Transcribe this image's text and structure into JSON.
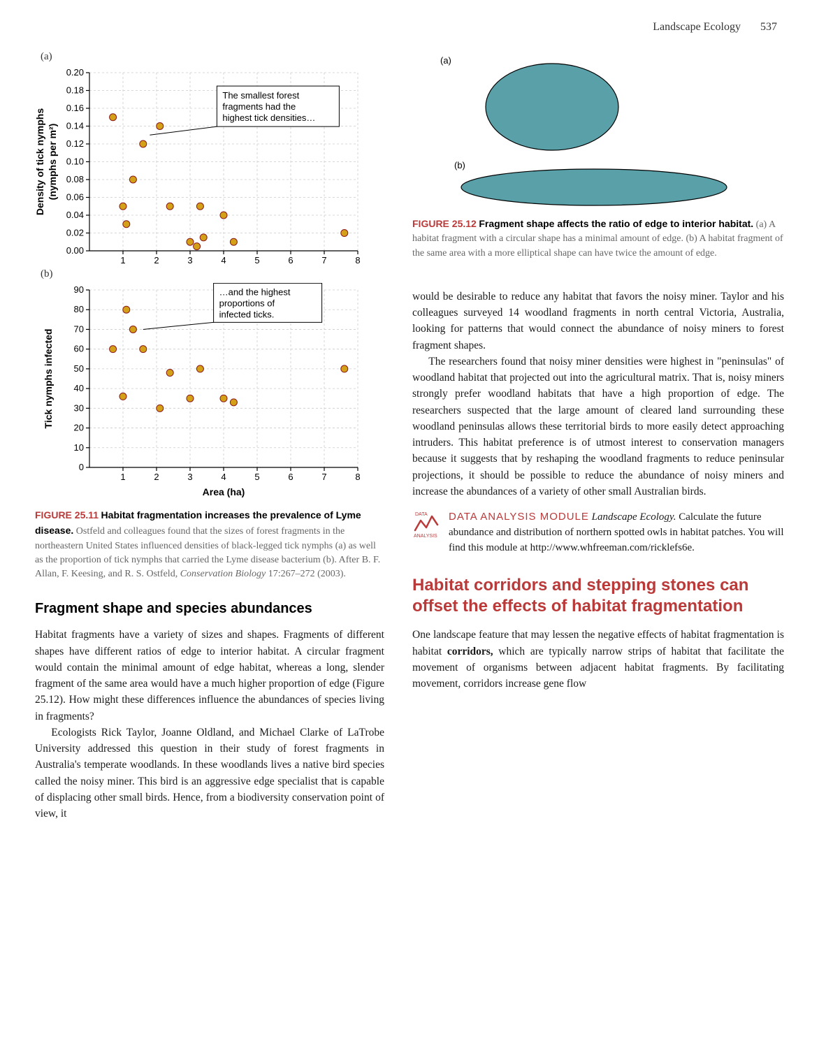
{
  "header": {
    "running": "Landscape Ecology",
    "page": "537"
  },
  "fig11": {
    "panelA": {
      "label": "(a)",
      "yLabel": "Density of tick nymphs\n(nymphs per m²)",
      "xlim": [
        0,
        8
      ],
      "ylim": [
        0.0,
        0.2
      ],
      "xticks": [
        1,
        2,
        3,
        4,
        5,
        6,
        7,
        8
      ],
      "yticks": [
        0.0,
        0.02,
        0.04,
        0.06,
        0.08,
        0.1,
        0.12,
        0.14,
        0.16,
        0.18,
        0.2
      ],
      "ytick_labels": [
        "0.00",
        "0.02",
        "0.04",
        "0.06",
        "0.08",
        "0.10",
        "0.12",
        "0.14",
        "0.16",
        "0.18",
        "0.20"
      ],
      "point_color": "#d4a017",
      "point_stroke": "#8a1a1a",
      "point_radius": 5,
      "grid_color": "#cccccc",
      "background": "#ffffff",
      "annotation": "The smallest forest\nfragments had the\nhighest tick densities…",
      "points": [
        [
          0.7,
          0.15
        ],
        [
          1.0,
          0.05
        ],
        [
          1.1,
          0.03
        ],
        [
          1.3,
          0.08
        ],
        [
          1.6,
          0.12
        ],
        [
          2.1,
          0.14
        ],
        [
          2.4,
          0.05
        ],
        [
          3.0,
          0.01
        ],
        [
          3.2,
          0.005
        ],
        [
          3.3,
          0.05
        ],
        [
          3.4,
          0.015
        ],
        [
          4.0,
          0.04
        ],
        [
          4.3,
          0.01
        ],
        [
          7.6,
          0.02
        ]
      ]
    },
    "panelB": {
      "label": "(b)",
      "yLabel": "Tick nymphs infected",
      "xLabel": "Area (ha)",
      "xlim": [
        0,
        8
      ],
      "ylim": [
        0,
        90
      ],
      "xticks": [
        1,
        2,
        3,
        4,
        5,
        6,
        7,
        8
      ],
      "yticks": [
        0,
        10,
        20,
        30,
        40,
        50,
        60,
        70,
        80,
        90
      ],
      "point_color": "#d4a017",
      "point_stroke": "#8a1a1a",
      "point_radius": 5,
      "grid_color": "#cccccc",
      "background": "#ffffff",
      "annotation": "…and the highest\nproportions of\ninfected ticks.",
      "points": [
        [
          0.7,
          60
        ],
        [
          1.0,
          36
        ],
        [
          1.1,
          80
        ],
        [
          1.3,
          70
        ],
        [
          1.6,
          60
        ],
        [
          2.1,
          30
        ],
        [
          2.4,
          48
        ],
        [
          3.0,
          35
        ],
        [
          3.3,
          50
        ],
        [
          4.0,
          35
        ],
        [
          4.3,
          33
        ],
        [
          7.6,
          50
        ]
      ]
    },
    "caption": {
      "label": "FIGURE 25.11",
      "title": "Habitat fragmentation increases the prevalence of Lyme disease.",
      "body": "Ostfeld and colleagues found that the sizes of forest fragments in the northeastern United States influenced densities of black-legged tick nymphs (a) as well as the proportion of tick nymphs that carried the Lyme disease bacterium (b). After B. F. Allan, F. Keesing, and R. S. Ostfeld,",
      "ital": "Conservation Biology",
      "tail": "17:267–272 (2003)."
    }
  },
  "fig12": {
    "panelA_label": "(a)",
    "panelB_label": "(b)",
    "shape_fill": "#5aa0a8",
    "shape_stroke": "#000000",
    "caption": {
      "label": "FIGURE 25.12",
      "title": "Fragment shape affects the ratio of edge to interior habitat.",
      "body": "(a) A habitat fragment with a circular shape has a minimal amount of edge. (b) A habitat fragment of the same area with a more elliptical shape can have twice the amount of edge."
    }
  },
  "sectionA": {
    "heading": "Fragment shape and species abundances",
    "p1": "Habitat fragments have a variety of sizes and shapes. Fragments of different shapes have different ratios of edge to interior habitat. A circular fragment would contain the minimal amount of edge habitat, whereas a long, slender fragment of the same area would have a much higher proportion of edge (Figure 25.12). How might these differences influence the abundances of species living in fragments?",
    "p2": "Ecologists Rick Taylor, Joanne Oldland, and Michael Clarke of LaTrobe University addressed this question in their study of forest fragments in Australia's temperate woodlands. In these woodlands lives a native bird species called the noisy miner. This bird is an aggressive edge specialist that is capable of displacing other small birds. Hence, from a biodiversity conservation point of view, it"
  },
  "rightCol": {
    "p1": "would be desirable to reduce any habitat that favors the noisy miner. Taylor and his colleagues surveyed 14 woodland fragments in north central Victoria, Australia, looking for patterns that would connect the abundance of noisy miners to forest fragment shapes.",
    "p2": "The researchers found that noisy miner densities were highest in \"peninsulas\" of woodland habitat that projected out into the agricultural matrix. That is, noisy miners strongly prefer woodland habitats that have a high proportion of edge. The researchers suspected that the large amount of cleared land surrounding these woodland peninsulas allows these territorial birds to more easily detect approaching intruders. This habitat preference is of utmost interest to conservation managers because it suggests that by reshaping the woodland fragments to reduce peninsular projections, it should be possible to reduce the abundance of noisy miners and increase the abundances of a variety of other small Australian birds."
  },
  "module": {
    "label": "DATA ANALYSIS MODULE",
    "title": "Landscape Ecology.",
    "body": "Calculate the future abundance and distribution of northern spotted owls in habitat patches. You will find this module at http://www.whfreeman.com/ricklefs6e.",
    "icon_color": "#ba3a3a",
    "icon_label": "DATA",
    "icon_sublabel": "ANALYSIS"
  },
  "sectionB": {
    "heading": "Habitat corridors and stepping stones can offset the effects of habitat fragmentation",
    "p1_a": "One landscape feature that may lessen the negative effects of habitat fragmentation is habitat ",
    "p1_bold": "corridors,",
    "p1_b": " which are typically narrow strips of habitat that facilitate the movement of organisms between adjacent habitat fragments. By facilitating movement, corridors increase gene flow"
  }
}
